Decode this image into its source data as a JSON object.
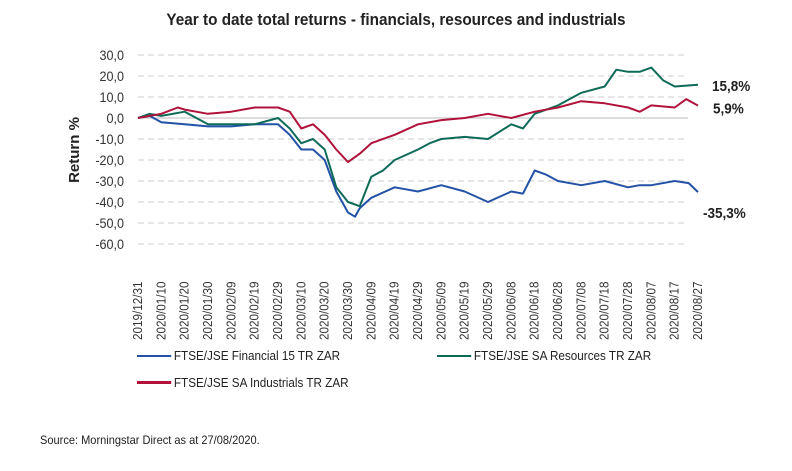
{
  "chart_data": {
    "type": "line",
    "title": "Year to date total returns - financials, resources and industrials",
    "xlabel": "",
    "ylabel": "Return %",
    "ylim": [
      -60,
      30
    ],
    "yticks": [
      "30,0",
      "20,0",
      "10,0",
      "0,0",
      "-10,0",
      "-20,0",
      "-30,0",
      "-40,0",
      "-50,0",
      "-60,0"
    ],
    "ytick_values": [
      30,
      20,
      10,
      0,
      -10,
      -20,
      -30,
      -40,
      -50,
      -60
    ],
    "xlim_days": [
      0,
      240
    ],
    "xticks": [
      "2019/12/31",
      "2020/01/10",
      "2020/01/20",
      "2020/01/30",
      "2020/02/09",
      "2020/02/19",
      "2020/02/29",
      "2020/03/10",
      "2020/03/20",
      "2020/03/30",
      "2020/04/09",
      "2020/04/19",
      "2020/04/29",
      "2020/05/09",
      "2020/05/19",
      "2020/05/29",
      "2020/06/08",
      "2020/06/18",
      "2020/06/28",
      "2020/07/08",
      "2020/07/18",
      "2020/07/28",
      "2020/08/07",
      "2020/08/17",
      "2020/08/27"
    ],
    "grid": true,
    "legend_position": "bottom",
    "series": [
      {
        "name": "FTSE/JSE Financial 15 TR ZAR",
        "color": "#2452a6",
        "end_label": "-35,3%",
        "x": [
          0,
          5,
          10,
          20,
          30,
          40,
          50,
          60,
          65,
          70,
          75,
          80,
          85,
          90,
          93,
          95,
          100,
          110,
          120,
          130,
          140,
          150,
          160,
          165,
          170,
          175,
          180,
          190,
          200,
          210,
          215,
          220,
          230,
          236,
          240
        ],
        "y": [
          0,
          1,
          -2,
          -3,
          -4,
          -4,
          -3,
          -3,
          -8,
          -15,
          -15,
          -20,
          -35,
          -45,
          -47,
          -43,
          -38,
          -33,
          -35,
          -32,
          -35,
          -40,
          -35,
          -36,
          -25,
          -27,
          -30,
          -32,
          -30,
          -33,
          -32,
          -32,
          -30,
          -31,
          -35.3
        ]
      },
      {
        "name": "FTSE/JSE SA Resources TR ZAR",
        "color": "#0e6b58",
        "end_label": "15,8%",
        "x": [
          0,
          5,
          10,
          20,
          30,
          40,
          50,
          60,
          65,
          70,
          75,
          80,
          85,
          90,
          95,
          100,
          105,
          110,
          120,
          125,
          130,
          140,
          150,
          160,
          165,
          170,
          180,
          190,
          200,
          205,
          210,
          215,
          220,
          225,
          230,
          240
        ],
        "y": [
          0,
          2,
          1,
          3,
          -3,
          -3,
          -3,
          0,
          -5,
          -12,
          -10,
          -15,
          -33,
          -40,
          -42,
          -28,
          -25,
          -20,
          -15,
          -12,
          -10,
          -9,
          -10,
          -3,
          -5,
          2,
          6,
          12,
          15,
          23,
          22,
          22,
          24,
          18,
          15,
          15.8
        ]
      },
      {
        "name": "FTSE/JSE SA Industrials TR ZAR",
        "color": "#b0123a",
        "end_label": "5,9%",
        "x": [
          0,
          10,
          17,
          20,
          30,
          40,
          50,
          60,
          65,
          70,
          75,
          80,
          85,
          90,
          95,
          100,
          110,
          120,
          130,
          140,
          150,
          160,
          170,
          180,
          190,
          200,
          210,
          215,
          220,
          230,
          235,
          240
        ],
        "y": [
          0,
          2,
          5,
          4,
          2,
          3,
          5,
          5,
          3,
          -5,
          -3,
          -8,
          -15,
          -21,
          -17,
          -12,
          -8,
          -3,
          -1,
          0,
          2,
          0,
          3,
          5,
          8,
          7,
          5,
          3,
          6,
          5,
          9,
          5.9
        ]
      }
    ]
  },
  "source": "Source: Morningstar Direct as at 27/08/2020."
}
